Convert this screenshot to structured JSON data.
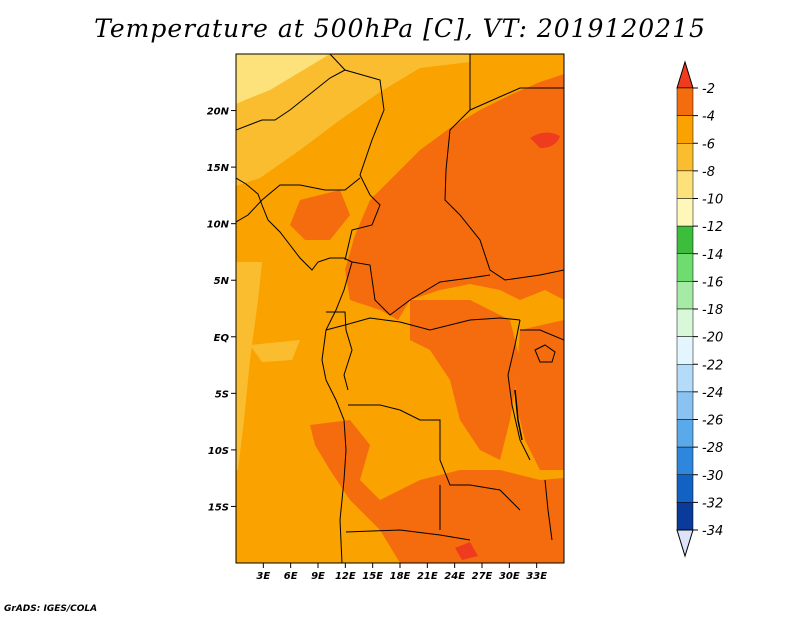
{
  "title": "Temperature at 500hPa [C], VT: 2019120215",
  "credit": "GrADS: IGES/COLA",
  "map": {
    "lon_range": [
      0,
      36
    ],
    "lat_range": [
      -20,
      25
    ],
    "lat_ticks": [
      {
        "value": 20,
        "label": "20N"
      },
      {
        "value": 15,
        "label": "15N"
      },
      {
        "value": 10,
        "label": "10N"
      },
      {
        "value": 5,
        "label": "5N"
      },
      {
        "value": 0,
        "label": "EQ"
      },
      {
        "value": -5,
        "label": "5S"
      },
      {
        "value": -10,
        "label": "10S"
      },
      {
        "value": -15,
        "label": "15S"
      }
    ],
    "lon_ticks": [
      {
        "value": 3,
        "label": "3E"
      },
      {
        "value": 6,
        "label": "6E"
      },
      {
        "value": 9,
        "label": "9E"
      },
      {
        "value": 12,
        "label": "12E"
      },
      {
        "value": 15,
        "label": "15E"
      },
      {
        "value": 18,
        "label": "18E"
      },
      {
        "value": 21,
        "label": "21E"
      },
      {
        "value": 24,
        "label": "24E"
      },
      {
        "value": 27,
        "label": "27E"
      },
      {
        "value": 30,
        "label": "30E"
      },
      {
        "value": 33,
        "label": "33E"
      }
    ]
  },
  "colorbar": {
    "labels": [
      "-2",
      "-4",
      "-6",
      "-8",
      "-10",
      "-12",
      "-14",
      "-16",
      "-18",
      "-20",
      "-22",
      "-24",
      "-26",
      "-28",
      "-30",
      "-32",
      "-34"
    ],
    "colors": [
      "#f03c1e",
      "#f56c0e",
      "#f9a200",
      "#fbbd30",
      "#fde27b",
      "#fff7b9",
      "#3cbe3c",
      "#6fdc6f",
      "#a5eba5",
      "#d9f7d9",
      "#e3f6ff",
      "#b4dcf8",
      "#8ac3f2",
      "#5aa9ea",
      "#2f87dd",
      "#1262c3",
      "#0a3a9a",
      "#0a1464",
      "#dfe3f7"
    ],
    "under_color": "#dfe3f7",
    "over_color": "#f03c1e"
  },
  "field_colors": {
    "deep": "#f56c0e",
    "main": "#f9a200",
    "light": "#fbbd30",
    "pale": "#fde27b"
  }
}
